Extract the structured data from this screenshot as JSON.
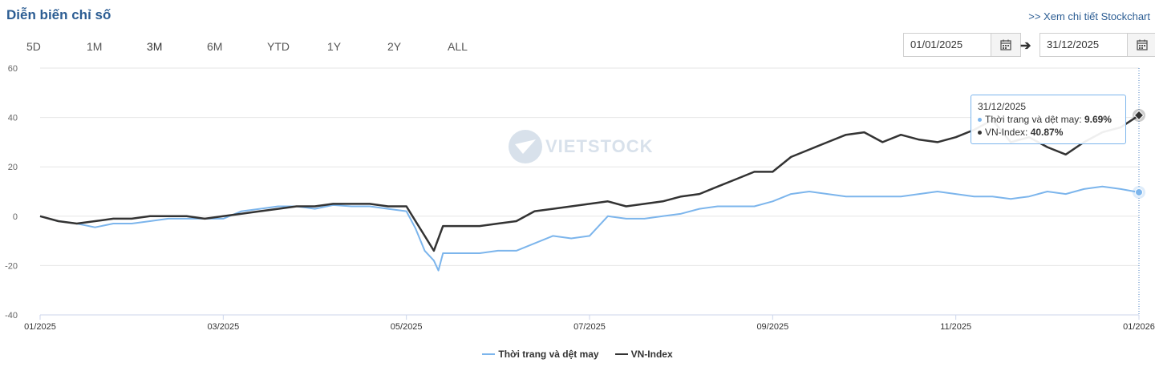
{
  "header": {
    "title": "Diễn biến chỉ số",
    "detail_link": ">> Xem chi tiết Stockchart"
  },
  "ranges": [
    "5D",
    "1M",
    "3M",
    "6M",
    "YTD",
    "1Y",
    "2Y",
    "ALL"
  ],
  "active_range": "3M",
  "date_from": "01/01/2025",
  "date_to": "31/12/2025",
  "icons": {
    "calendar": "calendar-icon",
    "arrow": "arrow-right-icon"
  },
  "watermark": "VIETSTOCK",
  "tooltip": {
    "date": "31/12/2025",
    "rows": [
      {
        "label": "Thời trang và dệt may:",
        "value": "9.69%",
        "color": "#7cb5ec"
      },
      {
        "label": "VN-Index:",
        "value": "40.87%",
        "color": "#333333"
      }
    ]
  },
  "chart_data": {
    "type": "line",
    "x_ticks": [
      "01/2025",
      "03/2025",
      "05/2025",
      "07/2025",
      "09/2025",
      "11/2025",
      "01/2026"
    ],
    "y_ticks": [
      "60",
      "40",
      "20",
      "0",
      "-20",
      "-40"
    ],
    "ylim": [
      -40,
      60
    ],
    "xlim": [
      0,
      12
    ],
    "grid": true,
    "legend_position": "bottom-center",
    "series": [
      {
        "name": "Thời trang và dệt may",
        "color": "#7cb5ec",
        "points": [
          [
            0,
            0
          ],
          [
            0.2,
            -2
          ],
          [
            0.4,
            -3
          ],
          [
            0.6,
            -4.5
          ],
          [
            0.8,
            -3
          ],
          [
            1.0,
            -3
          ],
          [
            1.2,
            -2
          ],
          [
            1.4,
            -1
          ],
          [
            1.6,
            -1
          ],
          [
            1.8,
            -1
          ],
          [
            2.0,
            -1
          ],
          [
            2.2,
            2
          ],
          [
            2.4,
            3
          ],
          [
            2.6,
            4
          ],
          [
            2.8,
            4
          ],
          [
            3.0,
            3
          ],
          [
            3.2,
            4.5
          ],
          [
            3.4,
            4
          ],
          [
            3.6,
            4
          ],
          [
            3.8,
            3
          ],
          [
            4.0,
            2
          ],
          [
            4.1,
            -5
          ],
          [
            4.2,
            -14
          ],
          [
            4.3,
            -18
          ],
          [
            4.35,
            -22
          ],
          [
            4.4,
            -15
          ],
          [
            4.6,
            -15
          ],
          [
            4.8,
            -15
          ],
          [
            5.0,
            -14
          ],
          [
            5.2,
            -14
          ],
          [
            5.4,
            -11
          ],
          [
            5.6,
            -8
          ],
          [
            5.8,
            -9
          ],
          [
            6.0,
            -8
          ],
          [
            6.2,
            0
          ],
          [
            6.4,
            -1
          ],
          [
            6.6,
            -1
          ],
          [
            6.8,
            0
          ],
          [
            7.0,
            1
          ],
          [
            7.2,
            3
          ],
          [
            7.4,
            4
          ],
          [
            7.6,
            4
          ],
          [
            7.8,
            4
          ],
          [
            8.0,
            6
          ],
          [
            8.2,
            9
          ],
          [
            8.4,
            10
          ],
          [
            8.6,
            9
          ],
          [
            8.8,
            8
          ],
          [
            9.0,
            8
          ],
          [
            9.2,
            8
          ],
          [
            9.4,
            8
          ],
          [
            9.6,
            9
          ],
          [
            9.8,
            10
          ],
          [
            10.0,
            9
          ],
          [
            10.2,
            8
          ],
          [
            10.4,
            8
          ],
          [
            10.6,
            7
          ],
          [
            10.8,
            8
          ],
          [
            11.0,
            10
          ],
          [
            11.2,
            9
          ],
          [
            11.4,
            11
          ],
          [
            11.6,
            12
          ],
          [
            11.8,
            11
          ],
          [
            12.0,
            9.69
          ]
        ]
      },
      {
        "name": "VN-Index",
        "color": "#333333",
        "points": [
          [
            0,
            0
          ],
          [
            0.2,
            -2
          ],
          [
            0.4,
            -3
          ],
          [
            0.6,
            -2
          ],
          [
            0.8,
            -1
          ],
          [
            1.0,
            -1
          ],
          [
            1.2,
            0
          ],
          [
            1.4,
            0
          ],
          [
            1.6,
            0
          ],
          [
            1.8,
            -1
          ],
          [
            2.0,
            0
          ],
          [
            2.2,
            1
          ],
          [
            2.4,
            2
          ],
          [
            2.6,
            3
          ],
          [
            2.8,
            4
          ],
          [
            3.0,
            4
          ],
          [
            3.2,
            5
          ],
          [
            3.4,
            5
          ],
          [
            3.6,
            5
          ],
          [
            3.8,
            4
          ],
          [
            4.0,
            4
          ],
          [
            4.1,
            -2
          ],
          [
            4.2,
            -8
          ],
          [
            4.3,
            -14
          ],
          [
            4.4,
            -4
          ],
          [
            4.6,
            -4
          ],
          [
            4.8,
            -4
          ],
          [
            5.0,
            -3
          ],
          [
            5.2,
            -2
          ],
          [
            5.4,
            2
          ],
          [
            5.6,
            3
          ],
          [
            5.8,
            4
          ],
          [
            6.0,
            5
          ],
          [
            6.2,
            6
          ],
          [
            6.4,
            4
          ],
          [
            6.6,
            5
          ],
          [
            6.8,
            6
          ],
          [
            7.0,
            8
          ],
          [
            7.2,
            9
          ],
          [
            7.4,
            12
          ],
          [
            7.6,
            15
          ],
          [
            7.8,
            18
          ],
          [
            8.0,
            18
          ],
          [
            8.2,
            24
          ],
          [
            8.4,
            27
          ],
          [
            8.6,
            30
          ],
          [
            8.8,
            33
          ],
          [
            9.0,
            34
          ],
          [
            9.2,
            30
          ],
          [
            9.4,
            33
          ],
          [
            9.6,
            31
          ],
          [
            9.8,
            30
          ],
          [
            10.0,
            32
          ],
          [
            10.2,
            35
          ],
          [
            10.4,
            39
          ],
          [
            10.6,
            30
          ],
          [
            10.8,
            32
          ],
          [
            11.0,
            28
          ],
          [
            11.2,
            25
          ],
          [
            11.4,
            30
          ],
          [
            11.6,
            34
          ],
          [
            11.8,
            36
          ],
          [
            12.0,
            40.87
          ]
        ]
      }
    ]
  }
}
